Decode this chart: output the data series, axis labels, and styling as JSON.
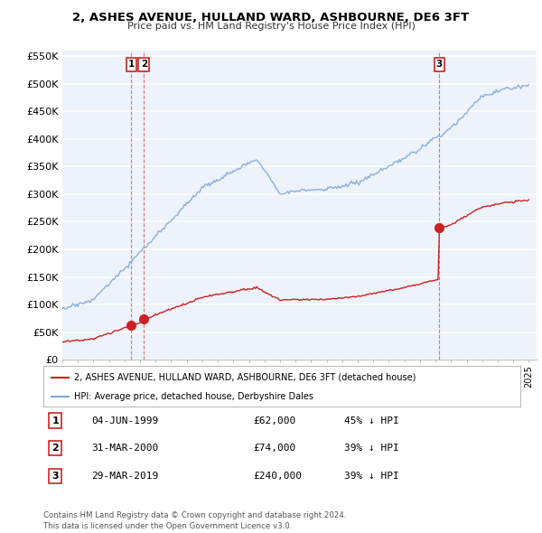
{
  "title": "2, ASHES AVENUE, HULLAND WARD, ASHBOURNE, DE6 3FT",
  "subtitle": "Price paid vs. HM Land Registry's House Price Index (HPI)",
  "ylim": [
    0,
    560000
  ],
  "yticks": [
    0,
    50000,
    100000,
    150000,
    200000,
    250000,
    300000,
    350000,
    400000,
    450000,
    500000,
    550000
  ],
  "ytick_labels": [
    "£0",
    "£50K",
    "£100K",
    "£150K",
    "£200K",
    "£250K",
    "£300K",
    "£350K",
    "£400K",
    "£450K",
    "£500K",
    "£550K"
  ],
  "xlim_start": 1995.0,
  "xlim_end": 2025.5,
  "hpi_color": "#7aaadd",
  "price_color": "#cc2222",
  "background_color": "#eef2fb",
  "grid_color": "#ffffff",
  "transactions": [
    {
      "label": "1",
      "date_num": 1999.44,
      "price": 62000,
      "text": "04-JUN-1999",
      "amount": "£62,000",
      "pct": "45% ↓ HPI"
    },
    {
      "label": "2",
      "date_num": 2000.25,
      "price": 74000,
      "text": "31-MAR-2000",
      "amount": "£74,000",
      "pct": "39% ↓ HPI"
    },
    {
      "label": "3",
      "date_num": 2019.25,
      "price": 240000,
      "text": "29-MAR-2019",
      "amount": "£240,000",
      "pct": "39% ↓ HPI"
    }
  ],
  "legend_line1": "2, ASHES AVENUE, HULLAND WARD, ASHBOURNE, DE6 3FT (detached house)",
  "legend_line2": "HPI: Average price, detached house, Derbyshire Dales",
  "footer": "Contains HM Land Registry data © Crown copyright and database right 2024.\nThis data is licensed under the Open Government Licence v3.0."
}
